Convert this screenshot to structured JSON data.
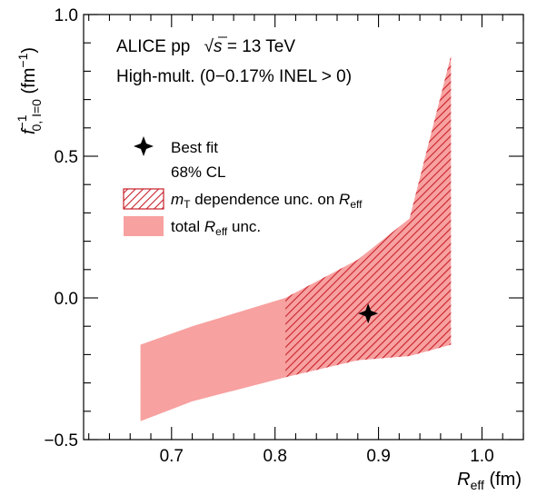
{
  "chart_data": {
    "type": "area",
    "title_line1": "ALICE pp",
    "title_sqrt": "s",
    "title_energy": " = 13 TeV",
    "title_line2": "High-mult. (0−0.17% INEL > 0)",
    "xlabel": {
      "main": "R",
      "sub": "eff",
      "unit": " (fm)"
    },
    "ylabel": {
      "main": "f",
      "sup": "−1",
      "sub": "0, I=0",
      "unit": " (fm",
      "unit_sup": "−1",
      "unit_close": ")"
    },
    "xlim": [
      0.615,
      1.04
    ],
    "ylim": [
      -0.5,
      1.0
    ],
    "x_ticks": [
      {
        "value": 0.7,
        "label": "0.7"
      },
      {
        "value": 0.8,
        "label": "0.8"
      },
      {
        "value": 0.9,
        "label": "0.9"
      },
      {
        "value": 1.0,
        "label": "1.0"
      }
    ],
    "y_ticks": [
      {
        "value": -0.5,
        "label": "−0.5"
      },
      {
        "value": 0.0,
        "label": "0.0"
      },
      {
        "value": 0.5,
        "label": "0.5"
      },
      {
        "value": 1.0,
        "label": "1.0"
      }
    ],
    "total_band": {
      "color": "#f7a1a0",
      "x": [
        0.67,
        0.72,
        0.81,
        0.88,
        0.93,
        0.97
      ],
      "upper": [
        -0.165,
        -0.1,
        0.0,
        0.135,
        0.28,
        0.855
      ],
      "lower": [
        -0.435,
        -0.365,
        -0.28,
        -0.22,
        -0.205,
        -0.165
      ]
    },
    "mt_band": {
      "color": "#c8202a",
      "x_start": 0.81,
      "x_end": 0.97
    },
    "best_fit": {
      "x": 0.89,
      "y": -0.055
    },
    "legend": {
      "placement": "left",
      "best_fit_label": "Best fit",
      "cl_label": "68% CL",
      "mt_label": {
        "main": "m",
        "sub": "T",
        "rest": " dependence unc. on ",
        "r": "R",
        "rsub": "eff"
      },
      "total_label": {
        "pre": "total ",
        "r": "R",
        "rsub": "eff",
        "post": " unc."
      }
    }
  }
}
